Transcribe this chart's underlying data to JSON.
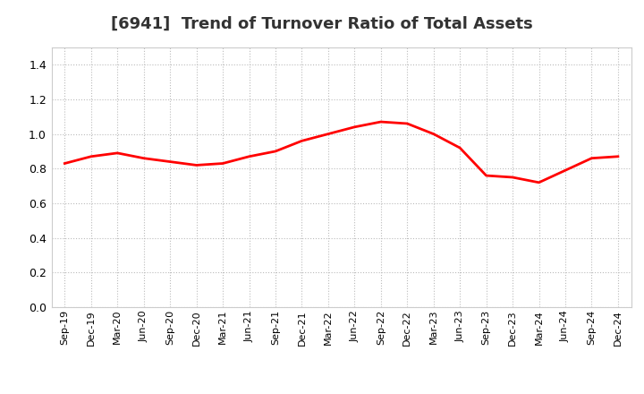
{
  "title": "[6941]  Trend of Turnover Ratio of Total Assets",
  "line_color": "#FF0000",
  "line_width": 2.0,
  "background_color": "#FFFFFF",
  "grid_color": "#BBBBBB",
  "ylim": [
    0.0,
    1.5
  ],
  "yticks": [
    0.0,
    0.2,
    0.4,
    0.6,
    0.8,
    1.0,
    1.2,
    1.4
  ],
  "labels": [
    "Sep-19",
    "Dec-19",
    "Mar-20",
    "Jun-20",
    "Sep-20",
    "Dec-20",
    "Mar-21",
    "Jun-21",
    "Sep-21",
    "Dec-21",
    "Mar-22",
    "Jun-22",
    "Sep-22",
    "Dec-22",
    "Mar-23",
    "Jun-23",
    "Sep-23",
    "Dec-23",
    "Mar-24",
    "Jun-24",
    "Sep-24",
    "Dec-24"
  ],
  "values": [
    0.83,
    0.87,
    0.89,
    0.86,
    0.84,
    0.82,
    0.83,
    0.87,
    0.9,
    0.96,
    1.0,
    1.04,
    1.07,
    1.06,
    1.0,
    0.92,
    0.76,
    0.75,
    0.72,
    0.79,
    0.86,
    0.87
  ],
  "title_fontsize": 13,
  "tick_fontsize": 8,
  "ytick_fontsize": 9
}
